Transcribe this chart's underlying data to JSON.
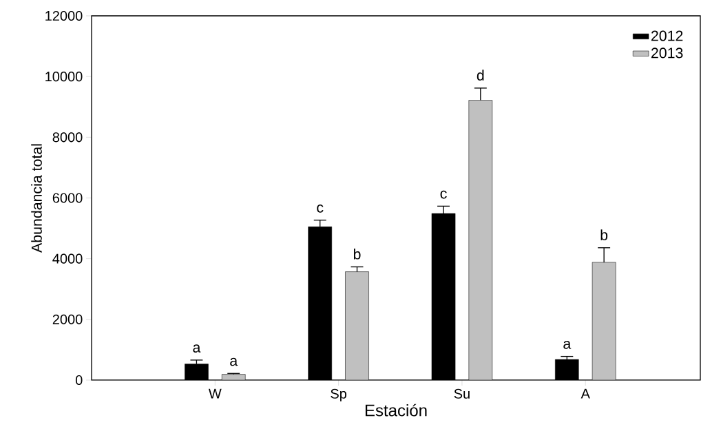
{
  "chart_data": {
    "type": "bar",
    "xlabel": "Estación",
    "ylabel": "Abundancia total",
    "categories": [
      "W",
      "Sp",
      "Su",
      "A"
    ],
    "series": [
      {
        "name": "2012",
        "color": "#000000",
        "values": [
          530,
          5050,
          5490,
          680
        ],
        "errors": [
          [
            530,
            660
          ],
          [
            5050,
            5270
          ],
          [
            5490,
            5730
          ],
          [
            680,
            780
          ]
        ],
        "value_labels": [
          "a",
          "c",
          "c",
          "a"
        ]
      },
      {
        "name": "2013",
        "color": "#c0c0c0",
        "values": [
          190,
          3570,
          9220,
          3880
        ],
        "errors": [
          [
            190,
            220
          ],
          [
            3570,
            3730
          ],
          [
            9220,
            9620
          ],
          [
            3880,
            4360
          ]
        ],
        "value_labels": [
          "a",
          "b",
          "d",
          "b"
        ]
      }
    ],
    "ylim": [
      0,
      12000
    ],
    "yticks": [
      0,
      2000,
      4000,
      6000,
      8000,
      10000,
      12000
    ],
    "grid": false,
    "legend": "top right"
  }
}
